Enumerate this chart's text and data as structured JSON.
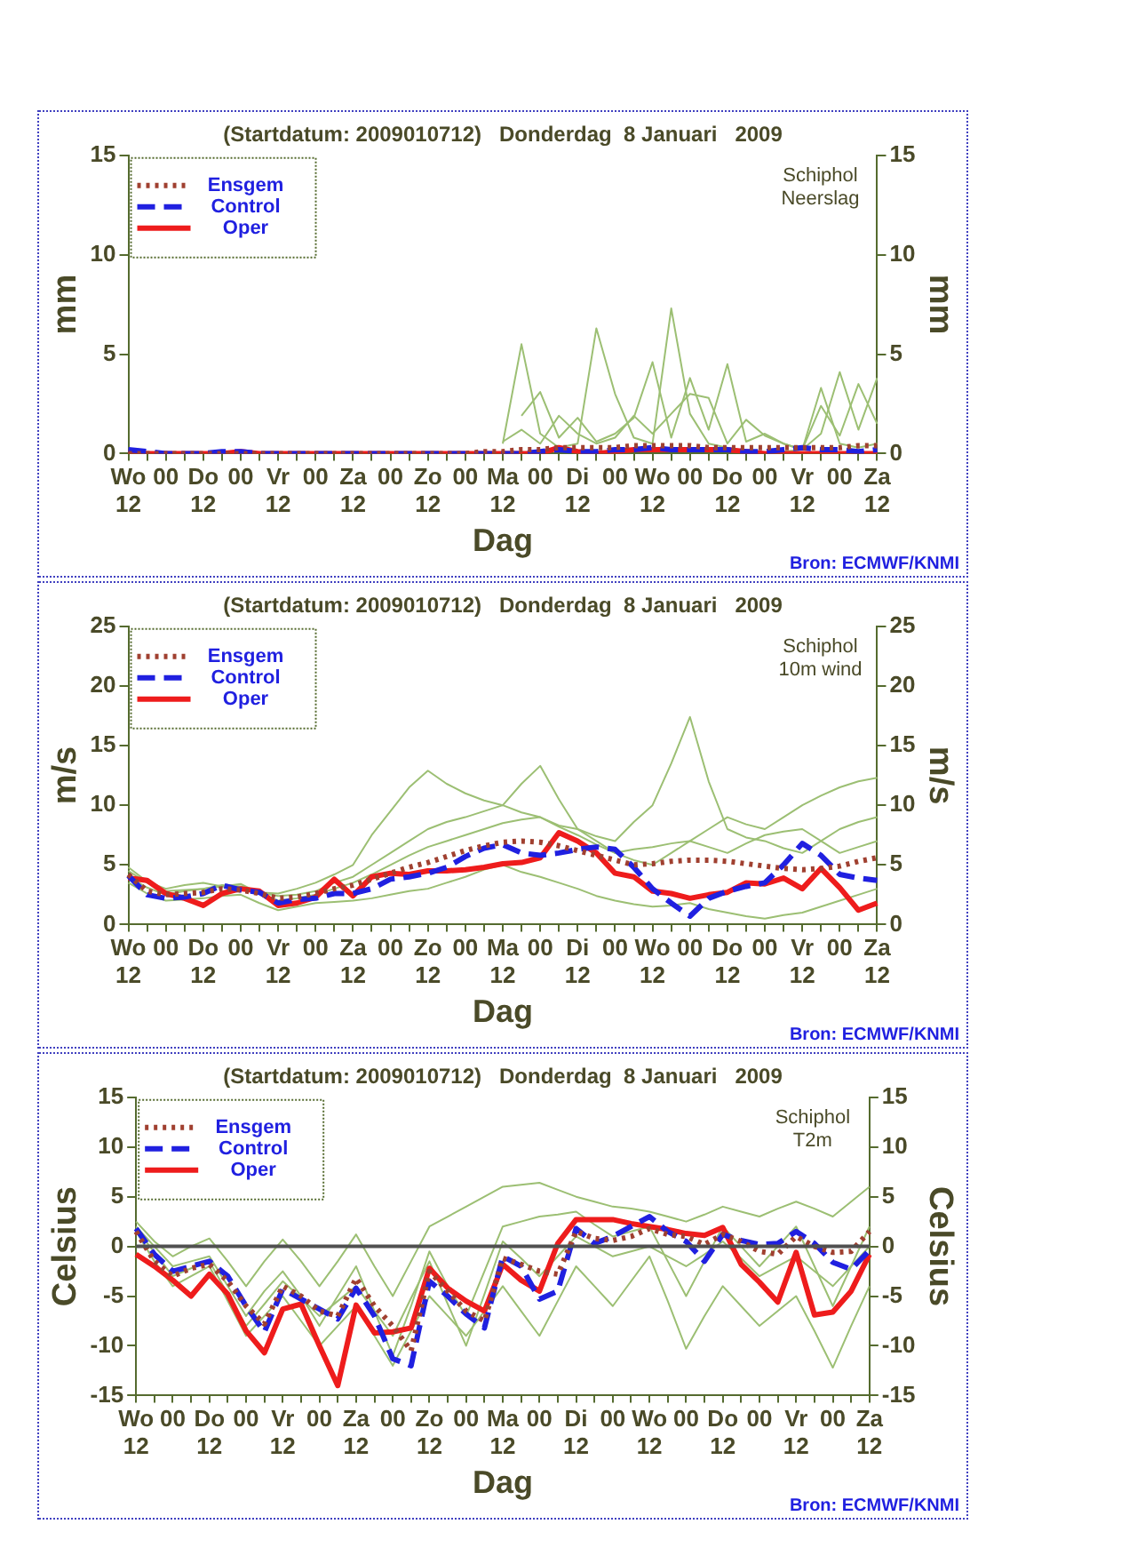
{
  "chart_data": [
    {
      "type": "line",
      "title": "(Startdatum: 2009010712)   Donderdag  8 Januari   2009",
      "xlabel": "Dag",
      "ylabel": "mm",
      "y2label": "mm",
      "annotations": [
        "Schiphol\nNeerslag",
        "Bron: ECMWF/KNMI"
      ],
      "categories": [
        "Wo\n12",
        null,
        "00",
        null,
        "Do\n12",
        null,
        "00",
        null,
        "Vr\n12",
        null,
        "00",
        null,
        "Za\n12",
        null,
        "00",
        null,
        "Zo\n12",
        null,
        "00",
        null,
        "Ma\n12",
        null,
        "00",
        null,
        "Di\n12",
        null,
        "00",
        null,
        "Wo\n12",
        null,
        "00",
        null,
        "Do\n12",
        null,
        "00",
        null,
        "Vr\n12",
        null,
        "00",
        null,
        "Za\n12"
      ],
      "ylim": [
        0,
        15
      ],
      "yticks": [
        0,
        5,
        10,
        15
      ],
      "y2lim": [
        0,
        15
      ],
      "y2ticks": [
        0,
        5,
        10,
        15
      ],
      "grid": false,
      "legend": "top left",
      "marker": "none",
      "series": [
        {
          "name": "Ensgem",
          "color": "#a04030",
          "line_style": "dotted",
          "values": [
            0,
            0,
            0,
            0,
            0,
            0,
            0,
            0,
            0,
            0,
            0,
            0,
            0,
            0,
            0,
            0,
            0,
            0,
            0,
            0.1,
            0.1,
            0.2,
            0.2,
            0.3,
            0.3,
            0.3,
            0.3,
            0.4,
            0.4,
            0.4,
            0.4,
            0.3,
            0.3,
            0.3,
            0.3,
            0.3,
            0.3,
            0.3,
            0.3,
            0.4,
            0.4
          ]
        },
        {
          "name": "Control",
          "color": "#2020e0",
          "line_style": "dashed",
          "values": [
            0.2,
            0.1,
            0,
            0,
            0,
            0.1,
            0.1,
            0,
            0,
            0,
            0,
            0,
            0,
            0,
            0,
            0,
            0,
            0,
            0,
            0,
            0,
            0,
            0.1,
            0.2,
            0.1,
            0.1,
            0.2,
            0.2,
            0.3,
            0.2,
            0.2,
            0.2,
            0.2,
            0.1,
            0.1,
            0.2,
            0.3,
            0.2,
            0.2,
            0.1,
            0.2
          ]
        },
        {
          "name": "Oper",
          "color": "#ee1c1c",
          "line_style": "solid",
          "values": [
            0.1,
            0,
            0,
            0,
            0,
            0,
            0.1,
            0,
            0,
            0,
            0,
            0,
            0,
            0,
            0,
            0,
            0,
            0,
            0,
            0,
            0,
            0,
            0,
            0.3,
            0.1,
            0,
            0.1,
            0.2,
            0.2,
            0.2,
            0.2,
            0.2,
            0.2,
            0.1,
            0,
            0,
            0,
            0,
            0,
            0,
            0
          ]
        },
        {
          "color": "#9cbf73",
          "line_style": "solid",
          "values": [
            null,
            null,
            null,
            null,
            null,
            null,
            null,
            null,
            null,
            null,
            null,
            null,
            null,
            null,
            null,
            null,
            null,
            null,
            null,
            null,
            0.5,
            5.5,
            1.0,
            0.3,
            0.5,
            6.3,
            3.0,
            0.8,
            0.5,
            7.3,
            2.0,
            0.5,
            0.3,
            null,
            null,
            0.1,
            0.2,
            3.3,
            0.5,
            0.3,
            0.5
          ]
        },
        {
          "color": "#9cbf73",
          "line_style": "solid",
          "values": [
            null,
            null,
            null,
            null,
            null,
            null,
            null,
            null,
            null,
            null,
            null,
            null,
            null,
            null,
            null,
            null,
            null,
            null,
            null,
            null,
            null,
            1.9,
            3.1,
            0.8,
            1.8,
            0.6,
            1.0,
            1.8,
            4.6,
            0.8,
            3.8,
            1.2,
            4.5,
            0.6,
            1.0,
            0.5,
            0.2,
            1.0,
            4.1,
            1.2,
            3.8
          ]
        },
        {
          "color": "#9cbf73",
          "line_style": "solid",
          "values": [
            null,
            null,
            null,
            null,
            null,
            null,
            null,
            null,
            null,
            null,
            null,
            null,
            null,
            null,
            null,
            null,
            null,
            null,
            null,
            null,
            0.6,
            1.2,
            0.5,
            1.9,
            1.0,
            0.5,
            0.8,
            1.9,
            1.0,
            2.0,
            3.0,
            2.8,
            0.5,
            1.7,
            0.9,
            0.5,
            0.2,
            2.4,
            0.9,
            3.5,
            1.5
          ]
        }
      ]
    },
    {
      "type": "line",
      "title": "(Startdatum: 2009010712)   Donderdag  8 Januari   2009",
      "xlabel": "Dag",
      "ylabel": "m/s",
      "y2label": "m/s",
      "annotations": [
        "Schiphol\n10m wind",
        "Bron: ECMWF/KNMI"
      ],
      "categories": [
        "Wo\n12",
        null,
        "00",
        null,
        "Do\n12",
        null,
        "00",
        null,
        "Vr\n12",
        null,
        "00",
        null,
        "Za\n12",
        null,
        "00",
        null,
        "Zo\n12",
        null,
        "00",
        null,
        "Ma\n12",
        null,
        "00",
        null,
        "Di\n12",
        null,
        "00",
        null,
        "Wo\n12",
        null,
        "00",
        null,
        "Do\n12",
        null,
        "00",
        null,
        "Vr\n12",
        null,
        "00",
        null,
        "Za\n12"
      ],
      "ylim": [
        0,
        25
      ],
      "yticks": [
        0,
        5,
        10,
        15,
        20,
        25
      ],
      "y2lim": [
        0,
        25
      ],
      "y2ticks": [
        0,
        5,
        10,
        15,
        20,
        25
      ],
      "grid": false,
      "legend": "top left",
      "marker": "none",
      "series": [
        {
          "name": "Ensgem",
          "color": "#a04030",
          "line_style": "dotted",
          "values": [
            4.2,
            2.8,
            2.5,
            2.6,
            2.7,
            3.0,
            2.9,
            2.6,
            2.2,
            2.3,
            2.6,
            3.0,
            3.3,
            3.8,
            4.3,
            4.8,
            5.2,
            5.7,
            6.2,
            6.6,
            6.9,
            7.0,
            6.9,
            6.6,
            6.2,
            5.8,
            5.4,
            5.0,
            5.1,
            5.3,
            5.4,
            5.4,
            5.3,
            5.1,
            4.9,
            4.7,
            4.6,
            4.7,
            4.9,
            5.3,
            5.6
          ]
        },
        {
          "name": "Control",
          "color": "#2020e0",
          "line_style": "dashed",
          "values": [
            4.1,
            2.5,
            2.2,
            2.3,
            2.6,
            3.3,
            2.9,
            2.7,
            1.8,
            2.1,
            2.2,
            2.6,
            2.6,
            3.0,
            3.8,
            4.0,
            4.3,
            4.8,
            5.7,
            6.4,
            6.7,
            6.0,
            5.8,
            6.0,
            6.3,
            6.5,
            6.3,
            4.8,
            3.0,
            1.8,
            0.7,
            2.2,
            2.8,
            3.2,
            3.5,
            5.0,
            6.8,
            5.8,
            4.2,
            3.9,
            3.7
          ]
        },
        {
          "name": "Oper",
          "color": "#ee1c1c",
          "line_style": "solid",
          "values": [
            3.9,
            3.7,
            2.6,
            2.2,
            1.6,
            2.6,
            3.0,
            2.8,
            1.6,
            1.8,
            2.3,
            3.8,
            2.4,
            4.0,
            4.3,
            4.2,
            4.5,
            4.5,
            4.6,
            4.8,
            5.1,
            5.2,
            5.6,
            7.7,
            7.0,
            6.0,
            4.3,
            4.0,
            2.8,
            2.6,
            2.2,
            2.5,
            2.7,
            3.5,
            3.4,
            3.9,
            3.0,
            4.7,
            3.1,
            1.2,
            1.8
          ]
        },
        {
          "color": "#9cbf73",
          "line_style": "solid",
          "values": [
            4.5,
            3.5,
            2.8,
            2.9,
            3.0,
            3.3,
            3.2,
            2.7,
            2.4,
            2.5,
            2.8,
            3.5,
            4,
            5,
            6,
            7,
            8,
            8.6,
            9,
            9.5,
            10,
            9.4,
            9,
            8.3,
            8,
            7.4,
            7,
            8.6,
            10,
            13.5,
            17.4,
            12,
            8,
            7.3,
            7,
            6.4,
            6,
            7,
            8,
            8.6,
            9
          ]
        },
        {
          "color": "#9cbf73",
          "line_style": "solid",
          "values": [
            4.8,
            3.6,
            3,
            3.3,
            3.5,
            3.2,
            3,
            2.7,
            2.6,
            3.0,
            3.5,
            4.2,
            5,
            7.5,
            9.5,
            11.5,
            12.9,
            11.8,
            11,
            10.4,
            10,
            11.8,
            13.3,
            10.5,
            8,
            7,
            6,
            5.4,
            5,
            6,
            7,
            8,
            9,
            8.4,
            8,
            9,
            10,
            10.8,
            11.5,
            12,
            12.3
          ]
        },
        {
          "color": "#9cbf73",
          "line_style": "solid",
          "values": [
            3.5,
            2.6,
            2,
            2.1,
            2.2,
            2.4,
            2.5,
            1.8,
            1.2,
            1.5,
            1.8,
            1.9,
            2,
            2.2,
            2.5,
            2.8,
            3,
            3.5,
            4,
            4.6,
            5,
            4.4,
            4,
            3.5,
            3,
            2.4,
            2,
            1.7,
            1.5,
            1.6,
            1.8,
            1.3,
            1,
            0.7,
            0.5,
            0.8,
            1,
            1.5,
            2,
            2.5,
            3
          ]
        },
        {
          "color": "#9cbf73",
          "line_style": "solid",
          "values": [
            4,
            3.1,
            2.5,
            2.8,
            3,
            3.2,
            3.4,
            2.6,
            2,
            2.2,
            2.5,
            3,
            3.5,
            4.2,
            5,
            5.8,
            6.5,
            7,
            7.5,
            8,
            8.5,
            8.8,
            9,
            8.2,
            7.5,
            6.7,
            6,
            6.3,
            6.5,
            6.8,
            7,
            6.5,
            6,
            6.8,
            7.5,
            7.8,
            8,
            7,
            6,
            6.5,
            7
          ]
        }
      ]
    },
    {
      "type": "line",
      "title": "(Startdatum: 2009010712)   Donderdag  8 Januari   2009",
      "xlabel": "Dag",
      "ylabel": "Celsius",
      "y2label": "Celsius",
      "annotations": [
        "Schiphol\nT2m",
        "Bron: ECMWF/KNMI"
      ],
      "categories": [
        "Wo\n12",
        null,
        "00",
        null,
        "Do\n12",
        null,
        "00",
        null,
        "Vr\n12",
        null,
        "00",
        null,
        "Za\n12",
        null,
        "00",
        null,
        "Zo\n12",
        null,
        "00",
        null,
        "Ma\n12",
        null,
        "00",
        null,
        "Di\n12",
        null,
        "00",
        null,
        "Wo\n12",
        null,
        "00",
        null,
        "Do\n12",
        null,
        "00",
        null,
        "Vr\n12",
        null,
        "00",
        null,
        "Za\n12"
      ],
      "ylim": [
        -15,
        15
      ],
      "yticks": [
        -15,
        -10,
        -5,
        0,
        5,
        10,
        15
      ],
      "y2lim": [
        -15,
        15
      ],
      "y2ticks": [
        -15,
        -10,
        -5,
        0,
        5,
        10,
        15
      ],
      "grid": false,
      "legend": "top left",
      "marker": "none",
      "ref_lines": [
        {
          "axis": "y",
          "value": 0,
          "color": "#505050"
        }
      ],
      "series": [
        {
          "name": "Ensgem",
          "color": "#a04030",
          "line_style": "dotted",
          "values": [
            1.5,
            -1.5,
            -3.0,
            -2.2,
            -1.8,
            -3.5,
            -6.0,
            -7.8,
            -4.0,
            -5.0,
            -6.5,
            -7.0,
            -3.2,
            -6.0,
            -8.0,
            -10.5,
            -2.5,
            -4.5,
            -6.5,
            -7.5,
            -1.2,
            -1.8,
            -2.5,
            -2.8,
            1.5,
            0.8,
            0.6,
            1.0,
            1.8,
            1.2,
            1.0,
            0.2,
            1.2,
            0.5,
            -0.5,
            -0.8,
            1.0,
            0.0,
            -0.6,
            -0.5,
            1.5
          ]
        },
        {
          "name": "Control",
          "color": "#2020e0",
          "line_style": "dashed",
          "values": [
            1.8,
            -0.8,
            -2.5,
            -2.0,
            -1.5,
            -3.0,
            -6.0,
            -8.6,
            -4.3,
            -5.3,
            -6.3,
            -7.3,
            -4.2,
            -7.0,
            -11.3,
            -12.0,
            -3.5,
            -5.0,
            -6.8,
            -8.2,
            -1.0,
            -2.0,
            -5.3,
            -4.5,
            1.8,
            0.3,
            1.0,
            2.0,
            3.0,
            1.5,
            0.5,
            -1.5,
            1.2,
            0.6,
            0.2,
            0.3,
            1.5,
            0.3,
            -1.6,
            -2.3,
            -0.4
          ]
        },
        {
          "name": "Oper",
          "color": "#ee1c1c",
          "line_style": "solid",
          "values": [
            -0.8,
            -2.0,
            -3.4,
            -5.0,
            -2.8,
            -4.8,
            -8.5,
            -10.7,
            -6.3,
            -5.8,
            -10,
            -14.0,
            -5.9,
            -8.7,
            -8.6,
            -8.2,
            -2.2,
            -4.2,
            -5.5,
            -6.5,
            -1.8,
            -3.4,
            -4.5,
            0.3,
            2.7,
            2.7,
            2.7,
            2.3,
            2.0,
            1.7,
            1.3,
            1.1,
            1.9,
            -1.8,
            -3.6,
            -5.6,
            -0.6,
            -6.9,
            -6.6,
            -4.5,
            -0.8
          ]
        },
        {
          "color": "#9cbf73",
          "line_style": "solid",
          "values": [
            2.5,
            0.5,
            -1,
            0,
            0.8,
            -1.5,
            -4,
            -1.5,
            0.7,
            -1.5,
            -4,
            -1.5,
            1.2,
            -2,
            -5,
            -1.5,
            2,
            3,
            4,
            5,
            6,
            6.2,
            6.4,
            5.7,
            5,
            4.5,
            4,
            3.8,
            3.5,
            3,
            2.5,
            3.2,
            4,
            3.5,
            3,
            3.8,
            4.5,
            3.8,
            3,
            4.5,
            6
          ]
        },
        {
          "color": "#9cbf73",
          "line_style": "solid",
          "values": [
            1.5,
            -1.5,
            -4,
            -3,
            -2,
            -5.5,
            -9,
            -7,
            -5,
            -7.5,
            -10,
            -8,
            -6,
            -9,
            -12,
            -8.5,
            -5,
            -7,
            -9,
            -6.5,
            -4,
            -6.5,
            -9,
            -5.5,
            -2,
            -4,
            -6,
            -3.5,
            -1,
            -5.5,
            -10.3,
            -7,
            -4,
            -6,
            -8,
            -6.5,
            -5,
            -8.5,
            -12.2,
            -8,
            -4
          ]
        },
        {
          "color": "#9cbf73",
          "line_style": "solid",
          "values": [
            2,
            0,
            -2,
            -1.5,
            -1,
            -4,
            -7,
            -4.5,
            -2.5,
            -5,
            -8,
            -5,
            -2,
            -6.5,
            -11,
            -6,
            -0.5,
            -4,
            -7,
            -2.5,
            2,
            2.5,
            3,
            3.2,
            3.5,
            2.2,
            1,
            1.5,
            2,
            -1.5,
            -5,
            -1.5,
            2,
            0,
            -2,
            0,
            2,
            -2,
            -6,
            -2,
            2
          ]
        },
        {
          "color": "#9cbf73",
          "line_style": "solid",
          "values": [
            1.8,
            -0.6,
            -3,
            -2.2,
            -1.5,
            -4.8,
            -8,
            -5.8,
            -3.5,
            -5.2,
            -7,
            -5.5,
            -4,
            -6.5,
            -9,
            -5.2,
            -1.5,
            -5.8,
            -10,
            -4.8,
            0.5,
            -1.2,
            -3,
            -1,
            1,
            0,
            -1,
            -0.5,
            0,
            -1,
            -2,
            -0.8,
            0.5,
            -1.2,
            -3,
            -2,
            -1,
            -2.5,
            -4,
            -2,
            0
          ]
        }
      ]
    }
  ]
}
